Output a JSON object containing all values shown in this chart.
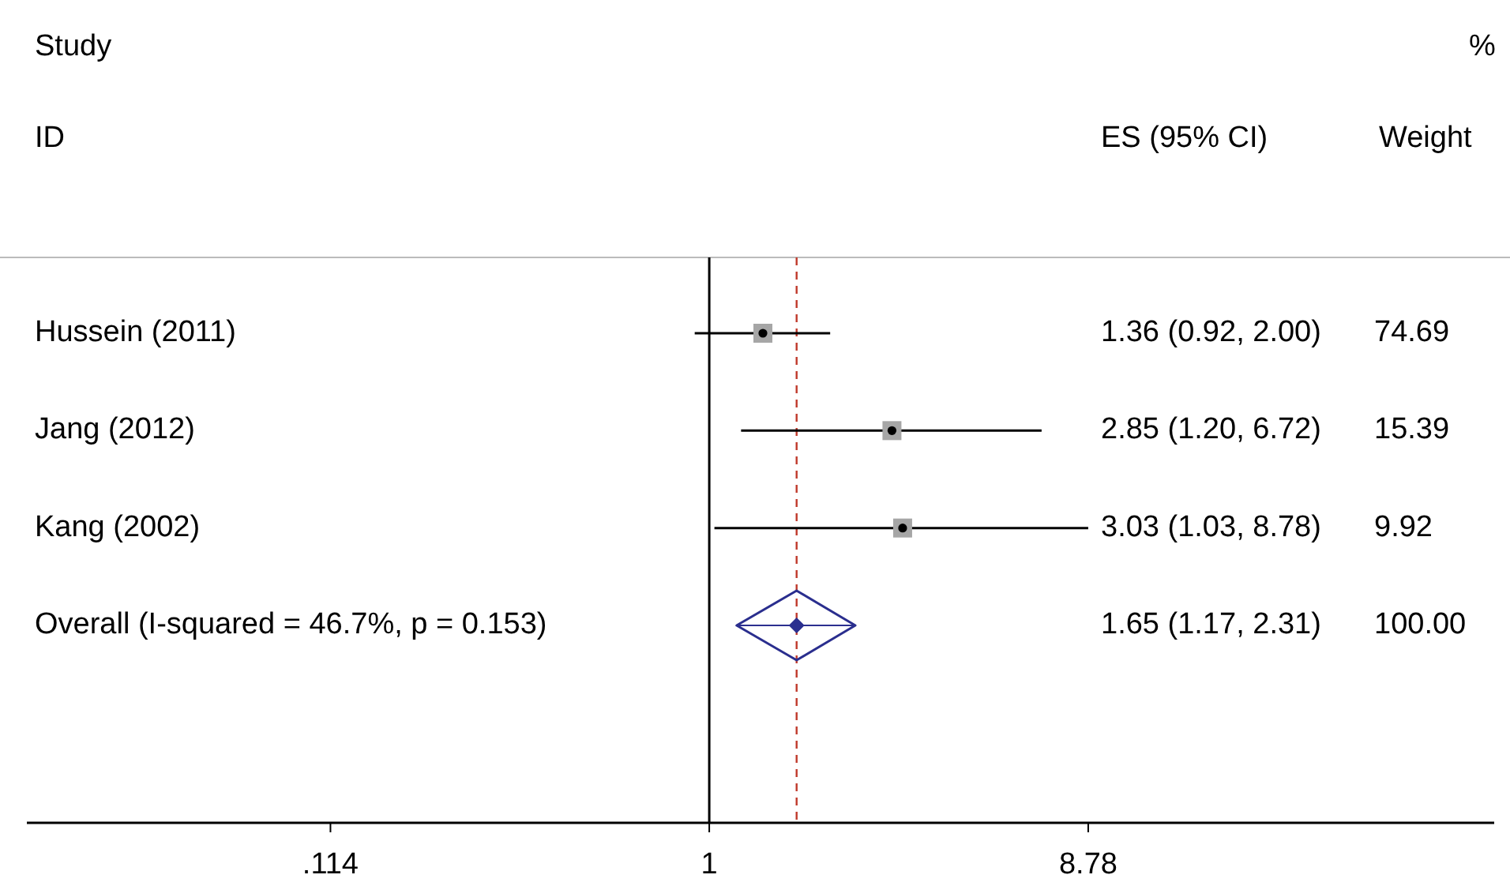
{
  "chart_data": {
    "type": "scatter",
    "orientation": "horizontal",
    "log": "x",
    "categories": [
      "Hussein (2011)",
      "Jang (2012)",
      "Kang (2002)",
      "Overall  (I-squared = 46.7%, p = 0.153)"
    ],
    "series": [
      {
        "marker": "square",
        "color": "#a6a6a6",
        "values": [
          1.36,
          2.85,
          3.03,
          null
        ],
        "errors": [
          [
            0.92,
            2.0
          ],
          [
            1.2,
            6.72
          ],
          [
            1.03,
            8.78
          ],
          null
        ]
      },
      {
        "marker": "diamond",
        "color": "#2b2f8f",
        "values": [
          null,
          null,
          null,
          1.65
        ],
        "errors": [
          null,
          null,
          null,
          [
            1.17,
            2.31
          ]
        ]
      }
    ],
    "xlim": [
      0.02,
      90
    ],
    "xticks": [
      {
        "value": 0.114,
        "label": ".114"
      },
      1,
      8.78
    ],
    "ref_lines": [
      {
        "axis": "x",
        "value": 1,
        "color": "#000000",
        "line_style": "solid"
      },
      {
        "axis": "x",
        "value": 1.65,
        "color": "#c0392b",
        "line_style": "dashed"
      }
    ],
    "annotations": [
      "Study",
      "ID",
      "ES (95% CI)",
      "%",
      "Weight",
      "1.36 (0.92, 2.00)",
      "74.69",
      "2.85 (1.20, 6.72)",
      "15.39",
      "3.03 (1.03, 8.78)",
      "9.92",
      "1.65 (1.17, 2.31)",
      "100.00"
    ]
  }
}
